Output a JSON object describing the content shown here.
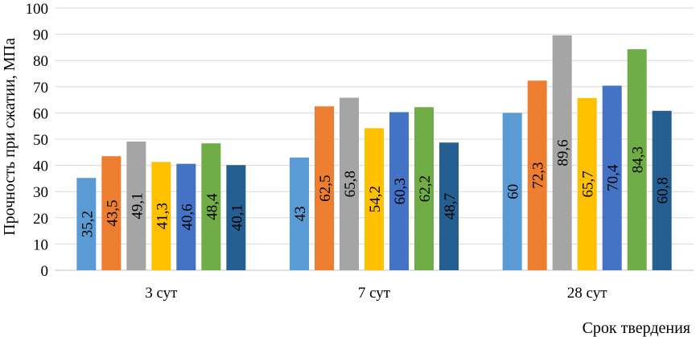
{
  "chart_data": {
    "type": "bar",
    "categories": [
      "3 сут",
      "7 сут",
      "28 сут"
    ],
    "series": [
      {
        "color": "#5B9BD5",
        "values": [
          35.2,
          43,
          60
        ],
        "labels": [
          "35,2",
          "43",
          "60"
        ]
      },
      {
        "color": "#ED7D31",
        "values": [
          43.5,
          62.5,
          72.3
        ],
        "labels": [
          "43,5",
          "62,5",
          "72,3"
        ]
      },
      {
        "color": "#A5A5A5",
        "values": [
          49.1,
          65.8,
          89.6
        ],
        "labels": [
          "49,1",
          "65,8",
          "89,6"
        ]
      },
      {
        "color": "#FFC000",
        "values": [
          41.3,
          54.2,
          65.7
        ],
        "labels": [
          "41,3",
          "54,2",
          "65,7"
        ]
      },
      {
        "color": "#4472C4",
        "values": [
          40.6,
          60.3,
          70.4
        ],
        "labels": [
          "40,6",
          "60,3",
          "70,4"
        ]
      },
      {
        "color": "#70AD47",
        "values": [
          48.4,
          62.2,
          84.3
        ],
        "labels": [
          "48,4",
          "62,2",
          "84,3"
        ]
      },
      {
        "color": "#255E91",
        "values": [
          40.1,
          48.7,
          60.8
        ],
        "labels": [
          "40,1",
          "48,7",
          "60,8"
        ]
      }
    ],
    "ylabel": "Прочность при сжатии, МПа",
    "xlabel": "Срок твердения",
    "ylim": [
      0,
      100
    ],
    "yticks": [
      0,
      10,
      20,
      30,
      40,
      50,
      60,
      70,
      80,
      90,
      100
    ],
    "grid": true,
    "legend": "none"
  }
}
